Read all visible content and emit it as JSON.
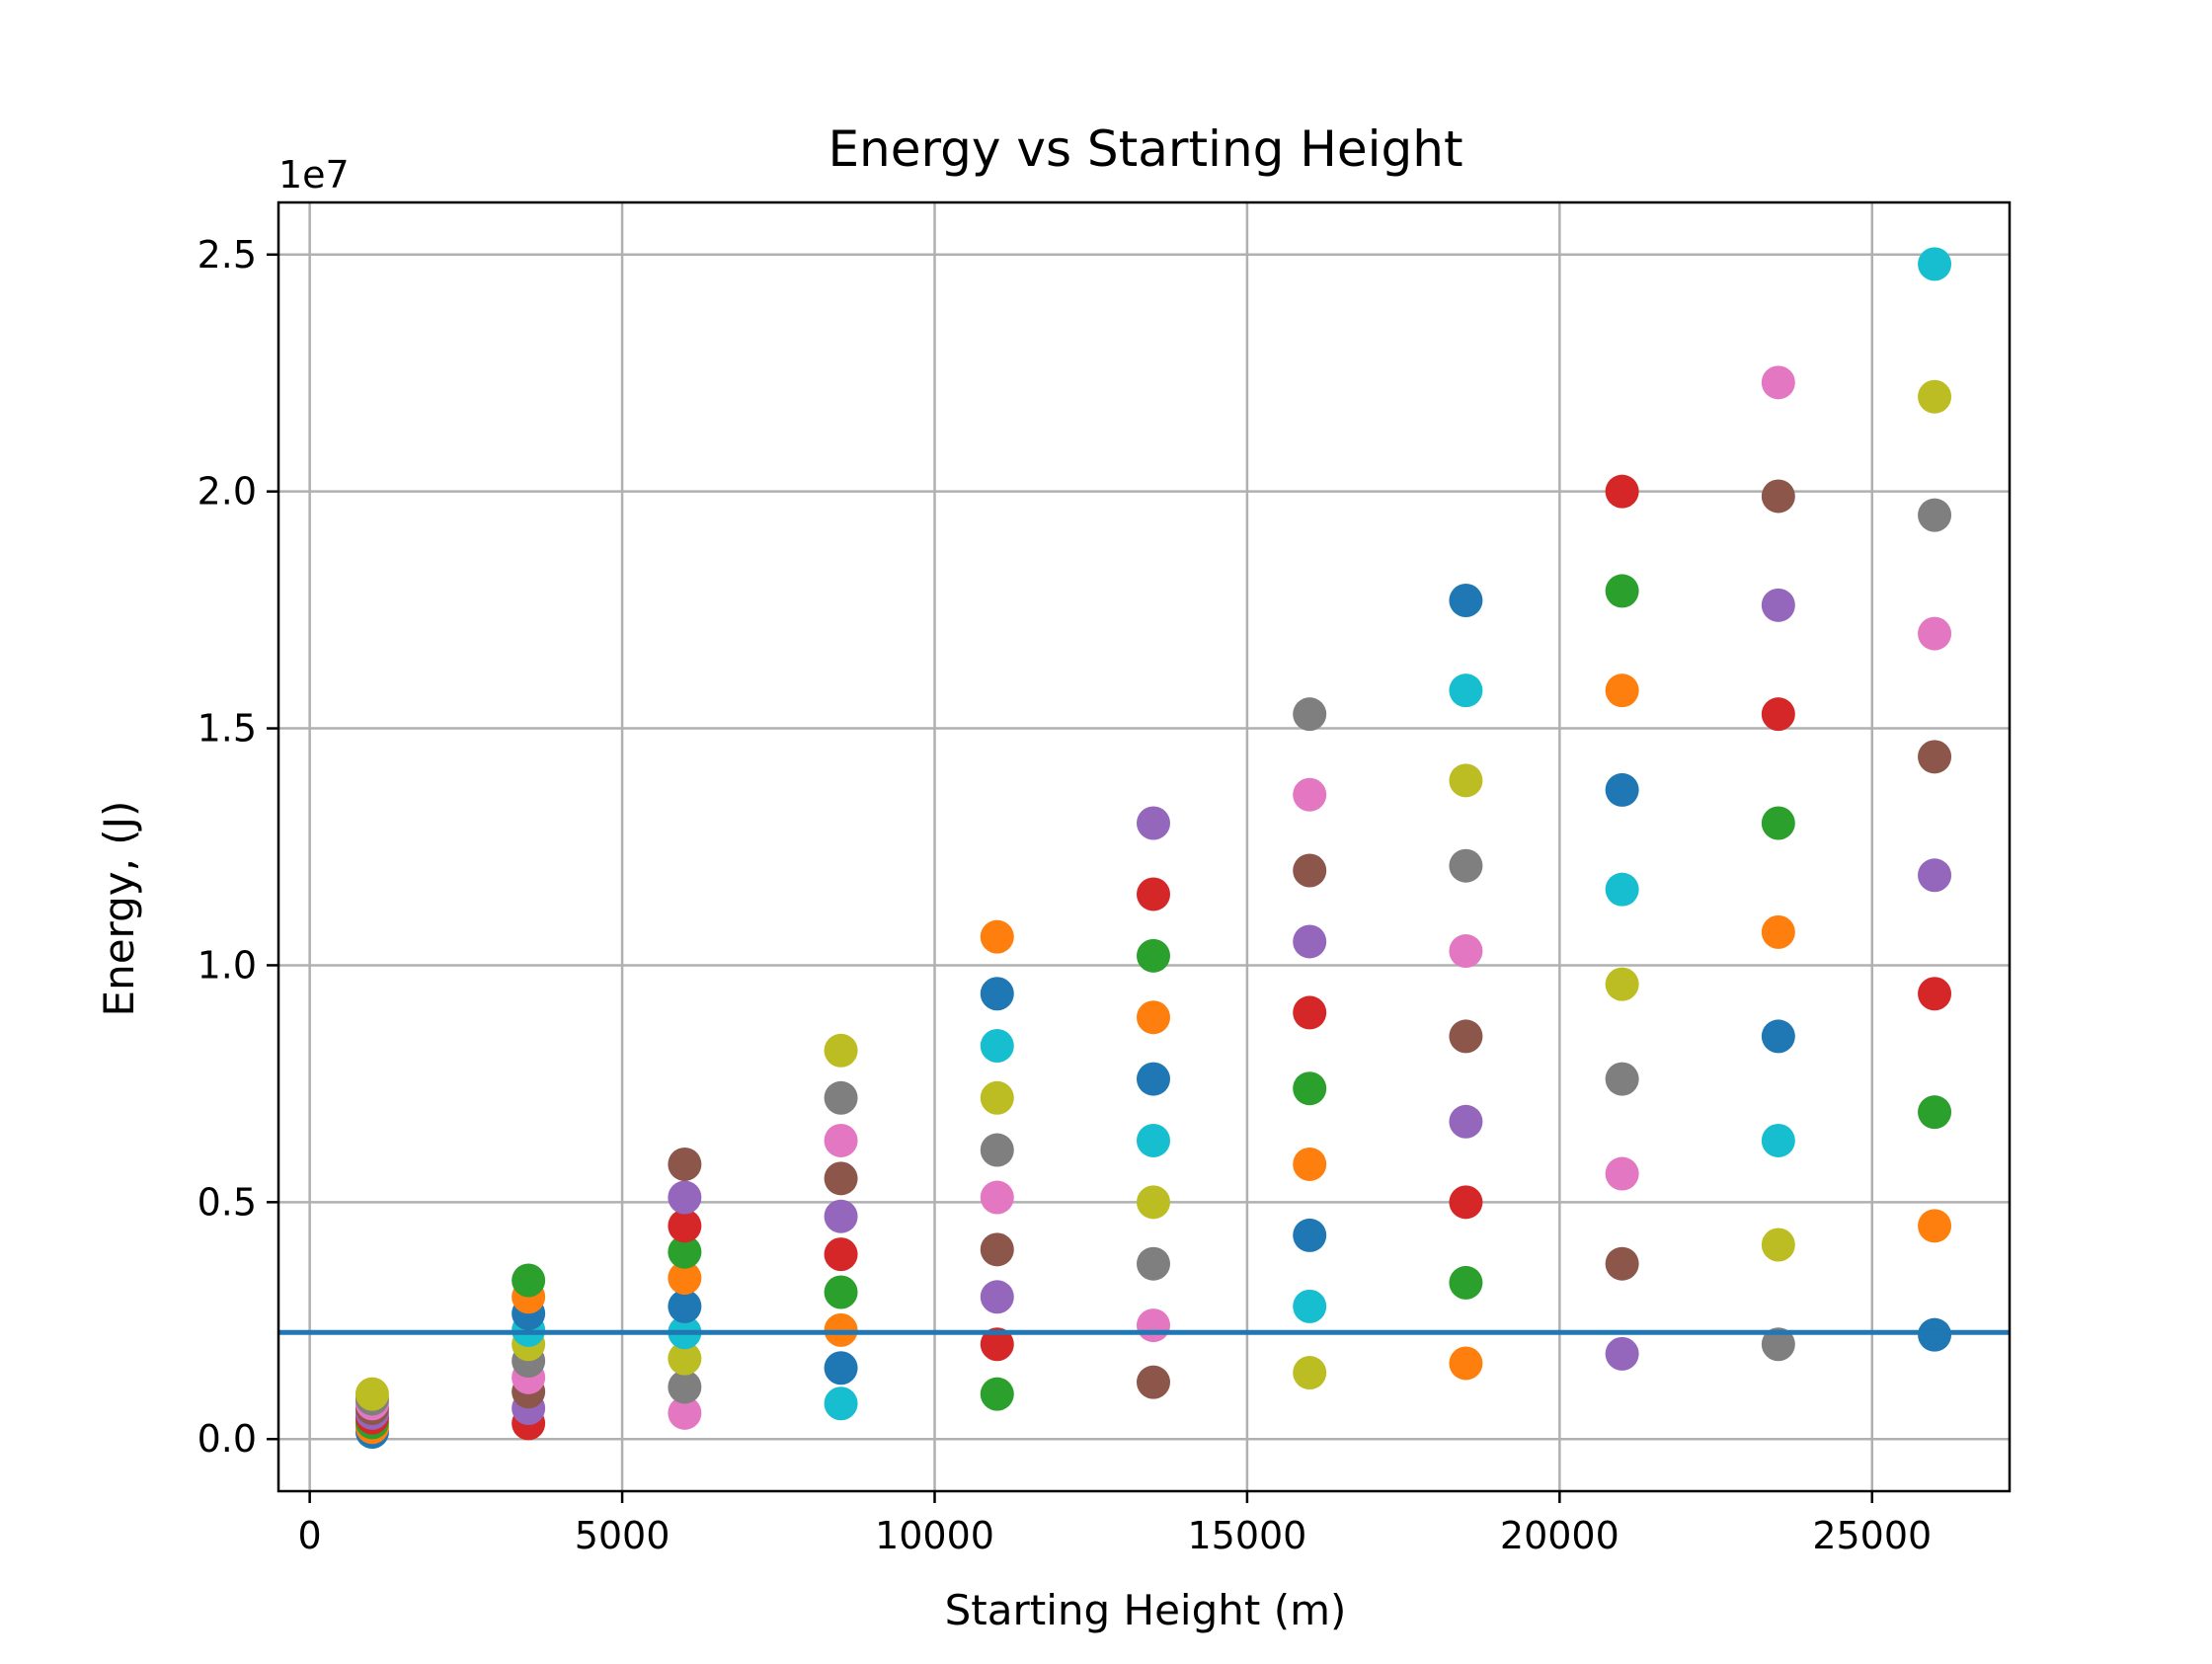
{
  "chart_data": {
    "type": "scatter",
    "title": "Energy vs Starting Height",
    "xlabel": "Starting Height (m)",
    "ylabel": "Energy, (J)",
    "y_offset_label": "1e7",
    "xlim": [
      -500,
      27200
    ],
    "ylim": [
      -1100000,
      26100000
    ],
    "x_ticks": [
      0,
      5000,
      10000,
      15000,
      20000,
      25000
    ],
    "x_tick_labels": [
      "0",
      "5000",
      "10000",
      "15000",
      "20000",
      "25000"
    ],
    "y_ticks": [
      0,
      5000000,
      10000000,
      15000000,
      20000000,
      25000000
    ],
    "y_tick_labels": [
      "0.0",
      "0.5",
      "1.0",
      "1.5",
      "2.0",
      "2.5"
    ],
    "grid": true,
    "reference_line": {
      "y": 2250000,
      "color": "#1f77b4"
    },
    "colors": [
      "#1f77b4",
      "#ff7f0e",
      "#2ca02c",
      "#d62728",
      "#9467bd",
      "#8c564b",
      "#e377c2",
      "#7f7f7f",
      "#bcbd22",
      "#17becf"
    ],
    "x": [
      1000,
      3500,
      6000,
      8500,
      11000,
      13500,
      16000,
      18500,
      21000,
      23500,
      26000
    ],
    "y_levels": [
      [
        150000,
        250000,
        350000,
        450000,
        550000,
        650000,
        750000,
        850000,
        950000
      ],
      [
        330000,
        650000,
        1000000,
        1300000,
        1650000,
        2000000,
        2300000,
        2650000,
        3000000,
        3350000
      ],
      [
        550000,
        1100000,
        1700000,
        2250000,
        2800000,
        3400000,
        3950000,
        4500000,
        5100000,
        5800000
      ],
      [
        750000,
        1500000,
        2300000,
        3100000,
        3900000,
        4700000,
        5500000,
        6300000,
        7200000,
        8200000
      ],
      [
        950000,
        2000000,
        3000000,
        4000000,
        5100000,
        6100000,
        7200000,
        8300000,
        9400000,
        10600000
      ],
      [
        1200000,
        2400000,
        3700000,
        5000000,
        6300000,
        7600000,
        8900000,
        10200000,
        11500000,
        13000000
      ],
      [
        1400000,
        2800000,
        4300000,
        5800000,
        7400000,
        9000000,
        10500000,
        12000000,
        13600000,
        15300000
      ],
      [
        1600000,
        3300000,
        5000000,
        6700000,
        8500000,
        10300000,
        12100000,
        13900000,
        15800000,
        17700000
      ],
      [
        1800000,
        3700000,
        5600000,
        7600000,
        9600000,
        11600000,
        13700000,
        15800000,
        17900000,
        20000000
      ],
      [
        2000000,
        4100000,
        6300000,
        8500000,
        10700000,
        13000000,
        15300000,
        17600000,
        19900000,
        22300000
      ],
      [
        2200000,
        4500000,
        6900000,
        9400000,
        11900000,
        14400000,
        17000000,
        19500000,
        22000000,
        24800000
      ]
    ]
  }
}
